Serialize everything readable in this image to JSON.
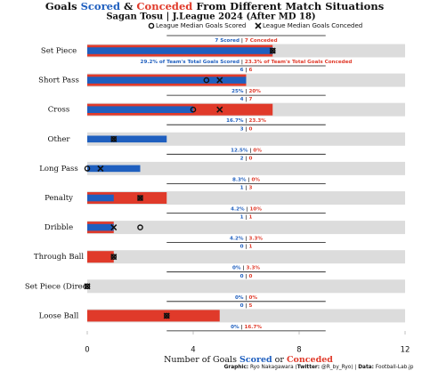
{
  "chart_data": {
    "type": "bar",
    "title_parts": [
      "Goals ",
      "Scored",
      " & ",
      "Conceded",
      " From Different Match Situations"
    ],
    "subtitle": "Sagan Tosu | J.League 2024 (After MD 18)",
    "categories": [
      "Set Piece",
      "Short Pass",
      "Cross",
      "Other",
      "Long Pass",
      "Penalty",
      "Dribble",
      "Through Ball",
      "Set Piece (Direct)",
      "Loose Ball"
    ],
    "separator": "|",
    "series": [
      {
        "color": "#1f5fbf",
        "values": [
          7,
          6,
          4,
          3,
          2,
          1,
          1,
          0,
          0,
          0
        ],
        "value_labels": [
          "7 Scored",
          "6",
          "4",
          "3",
          "2",
          "1",
          "1",
          "0",
          "0",
          "0"
        ],
        "share_labels": [
          "29.2% of Team's Total Goals Scored",
          "25%",
          "16.7%",
          "12.5%",
          "8.3%",
          "4.2%",
          "4.2%",
          "0%",
          "0%",
          "0%"
        ]
      },
      {
        "color": "#e03a2a",
        "values": [
          7,
          6,
          7,
          0,
          0,
          3,
          1,
          1,
          0,
          5
        ],
        "value_labels": [
          "7 Conceded",
          "6",
          "7",
          "0",
          "0",
          "3",
          "1",
          "1",
          "0",
          "5"
        ],
        "share_labels": [
          "23.3% of Team's Total Goals Conceded",
          "20%",
          "23.3%",
          "0%",
          "0%",
          "10%",
          "3.3%",
          "3.3%",
          "0%",
          "16.7%"
        ]
      },
      {
        "name": "League Median Goals Scored",
        "marker": "circle",
        "color": "#111111",
        "values": [
          7,
          4.5,
          4,
          1,
          0,
          2,
          2,
          1,
          0,
          3
        ]
      },
      {
        "name": "League Median Goals Conceded",
        "marker": "x",
        "color": "#111111",
        "values": [
          7,
          5,
          5,
          1,
          0.5,
          2,
          1,
          1,
          0,
          3
        ]
      }
    ],
    "xlim": [
      0,
      12
    ],
    "xticks": [
      0,
      4,
      8,
      12
    ],
    "xlabel_parts": [
      "Number of Goals ",
      "Scored",
      " or ",
      "Conceded"
    ],
    "background_color": "#dcdcdc",
    "footer_parts": [
      "Graphic:",
      " Ryo Nakagawara (",
      "Twitter:",
      " @R_by_Ryo) | ",
      "Data:",
      " Football-Lab.jp"
    ]
  }
}
